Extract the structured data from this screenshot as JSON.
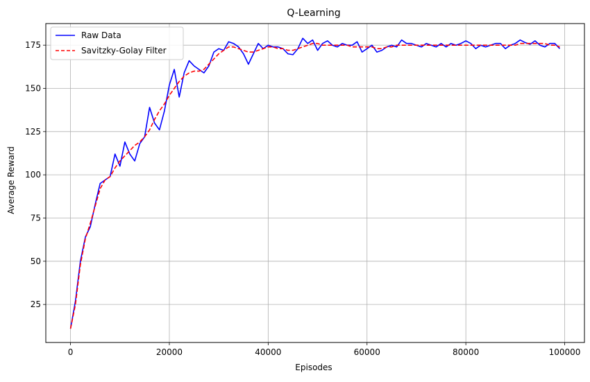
{
  "chart_data": {
    "type": "line",
    "title": "Q-Learning",
    "xlabel": "Episodes",
    "ylabel": "Average Reward",
    "xlim": [
      -5000,
      104000
    ],
    "ylim": [
      3,
      187.5
    ],
    "xticks": [
      0,
      20000,
      40000,
      60000,
      80000,
      100000
    ],
    "xtick_labels": [
      "0",
      "20000",
      "40000",
      "60000",
      "80000",
      "100000"
    ],
    "yticks": [
      25,
      50,
      75,
      100,
      125,
      150,
      175
    ],
    "ytick_labels": [
      "25",
      "50",
      "75",
      "100",
      "125",
      "150",
      "175"
    ],
    "grid": true,
    "legend_position": "top-left",
    "x": [
      0,
      1000,
      2000,
      3000,
      4000,
      5000,
      6000,
      7000,
      8000,
      9000,
      10000,
      11000,
      12000,
      13000,
      14000,
      15000,
      16000,
      17000,
      18000,
      19000,
      20000,
      21000,
      22000,
      23000,
      24000,
      25000,
      26000,
      27000,
      28000,
      29000,
      30000,
      31000,
      32000,
      33000,
      34000,
      35000,
      36000,
      37000,
      38000,
      39000,
      40000,
      41000,
      42000,
      43000,
      44000,
      45000,
      46000,
      47000,
      48000,
      49000,
      50000,
      51000,
      52000,
      53000,
      54000,
      55000,
      56000,
      57000,
      58000,
      59000,
      60000,
      61000,
      62000,
      63000,
      64000,
      65000,
      66000,
      67000,
      68000,
      69000,
      70000,
      71000,
      72000,
      73000,
      74000,
      75000,
      76000,
      77000,
      78000,
      79000,
      80000,
      81000,
      82000,
      83000,
      84000,
      85000,
      86000,
      87000,
      88000,
      89000,
      90000,
      91000,
      92000,
      93000,
      94000,
      95000,
      96000,
      97000,
      98000,
      99000
    ],
    "series": [
      {
        "name": "Raw Data",
        "color": "#0000ff",
        "style": "solid",
        "values": [
          11,
          27,
          50,
          64,
          70,
          83,
          95,
          97,
          99,
          112,
          105,
          119,
          112,
          108,
          118,
          122,
          139,
          130,
          126,
          137,
          152,
          161,
          145,
          159,
          166,
          163,
          161,
          159,
          163,
          171,
          173,
          172,
          177,
          176,
          174,
          170,
          164,
          170,
          176,
          173,
          175,
          174,
          174,
          173,
          170,
          169.5,
          173,
          179,
          176,
          178,
          172,
          176,
          177.5,
          175,
          174,
          176,
          175,
          175,
          177,
          171,
          173,
          175,
          171,
          172,
          174,
          175,
          174,
          178,
          176,
          176,
          175,
          174,
          176,
          175,
          174,
          176,
          174,
          176,
          175,
          176,
          177.5,
          176,
          173,
          175,
          174,
          175,
          176,
          176,
          173,
          175,
          176,
          178,
          176.5,
          175.5,
          177.5,
          175,
          174,
          176,
          176,
          173
        ]
      },
      {
        "name": "Savitzky-Golay Filter",
        "color": "#ff0000",
        "style": "dashed",
        "values": [
          11,
          25,
          48,
          63,
          72,
          82,
          92,
          97,
          99,
          104,
          108,
          111,
          114,
          117,
          119,
          122,
          126,
          132,
          137,
          141,
          146,
          150,
          154,
          157,
          159,
          160,
          160,
          161,
          164,
          167,
          170,
          172,
          174,
          174,
          173,
          172,
          171,
          171,
          172,
          173,
          174,
          174,
          173,
          173,
          172,
          172,
          173,
          174,
          175,
          176,
          176,
          175,
          175,
          175,
          175,
          175,
          175,
          174,
          174,
          174,
          174,
          174,
          173,
          173,
          174,
          174,
          175,
          175,
          175,
          175,
          175,
          175,
          175,
          175,
          175,
          175,
          175,
          175,
          175,
          175,
          175,
          175,
          175,
          175,
          175,
          175,
          175,
          175,
          175,
          175,
          175,
          176,
          176,
          176,
          176,
          176,
          176,
          175,
          175,
          174
        ]
      }
    ]
  }
}
